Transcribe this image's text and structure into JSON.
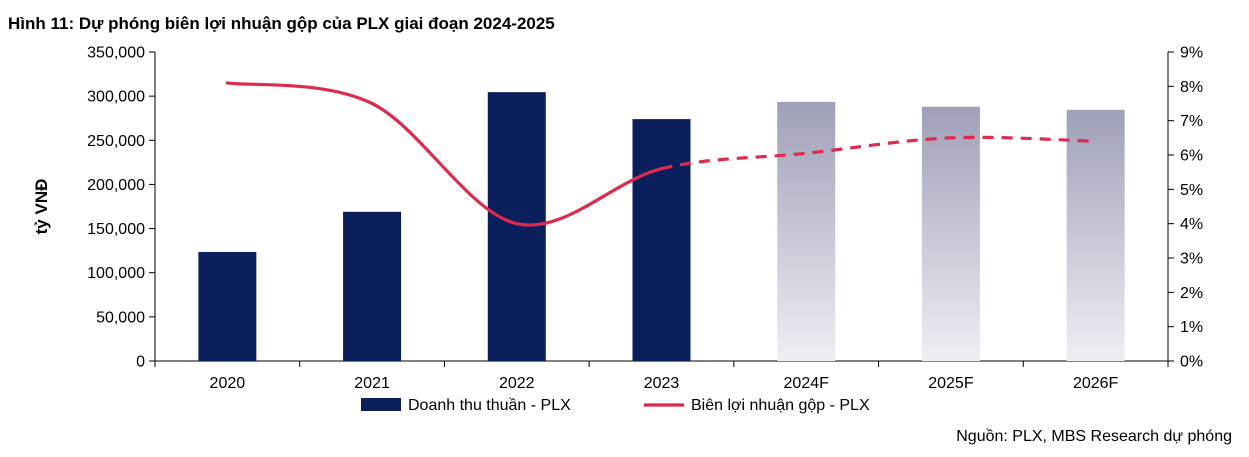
{
  "figure": {
    "title": "Hình 11: Dự phóng biên lợi nhuận gộp của PLX giai đoạn 2024-2025",
    "source": "Nguồn: PLX, MBS Research dự phóng"
  },
  "colors": {
    "actual_bar": "#0b1f5c",
    "forecast_bar_top": "#9fa0b8",
    "forecast_bar_bottom": "#eeeef3",
    "margin_line": "#e0294f"
  },
  "chart_data": {
    "type": "bar",
    "categories": [
      "2020",
      "2021",
      "2022",
      "2023",
      "2024F",
      "2025F",
      "2026F"
    ],
    "series": [
      {
        "name": "Doanh thu thuần - PLX",
        "type": "bar",
        "axis": "left",
        "values": [
          123500,
          169000,
          304500,
          274000,
          293500,
          288000,
          284500
        ],
        "forecast_from_index": 4
      },
      {
        "name": "Biên lợi nhuận gộp - PLX",
        "type": "line",
        "axis": "right",
        "values": [
          8.1,
          7.5,
          4.0,
          5.6,
          6.05,
          6.5,
          6.4
        ],
        "forecast_from_index": 3
      }
    ],
    "ylabel": "tỷ VNĐ",
    "y_left": {
      "min": 0,
      "max": 350000,
      "ticks": [
        0,
        50000,
        100000,
        150000,
        200000,
        250000,
        300000,
        350000
      ],
      "tick_labels": [
        "0",
        "50,000",
        "100,000",
        "150,000",
        "200,000",
        "250,000",
        "300,000",
        "350,000"
      ]
    },
    "y_right": {
      "min": 0,
      "max": 9,
      "ticks": [
        0,
        1,
        2,
        3,
        4,
        5,
        6,
        7,
        8,
        9
      ],
      "tick_labels": [
        "0%",
        "1%",
        "2%",
        "3%",
        "4%",
        "5%",
        "6%",
        "7%",
        "8%",
        "9%"
      ]
    },
    "grid": false,
    "legend_position": "bottom"
  }
}
